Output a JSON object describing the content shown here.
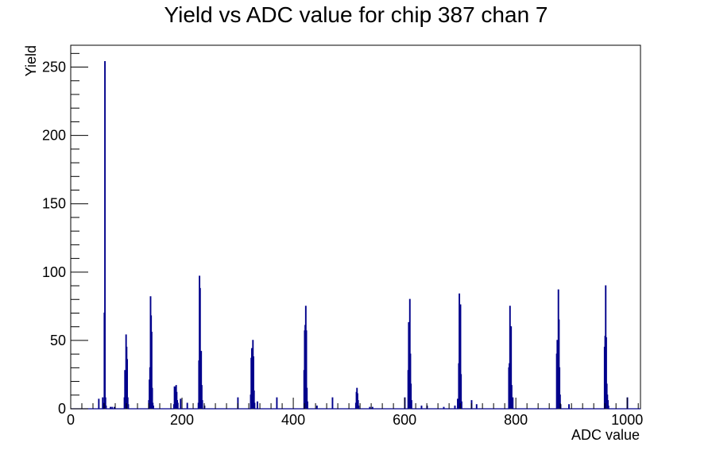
{
  "chart_data": {
    "type": "histogram",
    "title": "Yield vs ADC value for chip 387 chan 7",
    "xlabel": "ADC value",
    "ylabel": "Yield",
    "xlim": [
      0,
      1024
    ],
    "ylim": [
      0,
      266
    ],
    "x_ticks": [
      0,
      200,
      400,
      600,
      800,
      1000
    ],
    "y_ticks": [
      0,
      50,
      100,
      150,
      200,
      250
    ],
    "line_color": "#00008b",
    "legend": "none",
    "grid": false,
    "bin_width": 1,
    "bins": [
      [
        50,
        7
      ],
      [
        57,
        8
      ],
      [
        59,
        4
      ],
      [
        60,
        70
      ],
      [
        61,
        254
      ],
      [
        62,
        8
      ],
      [
        63,
        2
      ],
      [
        71,
        1
      ],
      [
        74,
        1
      ],
      [
        78,
        1
      ],
      [
        96,
        8
      ],
      [
        97,
        28
      ],
      [
        98,
        27
      ],
      [
        99,
        54
      ],
      [
        100,
        45
      ],
      [
        101,
        36
      ],
      [
        102,
        8
      ],
      [
        103,
        3
      ],
      [
        140,
        6
      ],
      [
        141,
        21
      ],
      [
        142,
        30
      ],
      [
        143,
        82
      ],
      [
        144,
        68
      ],
      [
        145,
        56
      ],
      [
        146,
        15
      ],
      [
        147,
        4
      ],
      [
        148,
        2
      ],
      [
        185,
        3
      ],
      [
        186,
        16
      ],
      [
        187,
        16
      ],
      [
        188,
        13
      ],
      [
        189,
        17
      ],
      [
        190,
        12
      ],
      [
        191,
        6
      ],
      [
        192,
        4
      ],
      [
        197,
        7
      ],
      [
        209,
        4
      ],
      [
        229,
        4
      ],
      [
        230,
        35
      ],
      [
        231,
        97
      ],
      [
        232,
        88
      ],
      [
        233,
        22
      ],
      [
        234,
        42
      ],
      [
        235,
        17
      ],
      [
        236,
        6
      ],
      [
        240,
        2
      ],
      [
        300,
        8
      ],
      [
        323,
        10
      ],
      [
        324,
        37
      ],
      [
        325,
        44
      ],
      [
        326,
        43
      ],
      [
        327,
        50
      ],
      [
        328,
        38
      ],
      [
        329,
        13
      ],
      [
        330,
        4
      ],
      [
        335,
        5
      ],
      [
        370,
        8
      ],
      [
        419,
        28
      ],
      [
        420,
        57
      ],
      [
        421,
        61
      ],
      [
        422,
        75
      ],
      [
        423,
        57
      ],
      [
        424,
        15
      ],
      [
        425,
        5
      ],
      [
        442,
        2
      ],
      [
        470,
        8
      ],
      [
        512,
        4
      ],
      [
        513,
        12
      ],
      [
        514,
        15
      ],
      [
        515,
        11
      ],
      [
        516,
        6
      ],
      [
        517,
        2
      ],
      [
        537,
        1
      ],
      [
        542,
        1
      ],
      [
        600,
        8
      ],
      [
        606,
        28
      ],
      [
        607,
        63
      ],
      [
        608,
        62
      ],
      [
        609,
        80
      ],
      [
        610,
        40
      ],
      [
        611,
        18
      ],
      [
        612,
        6
      ],
      [
        630,
        2
      ],
      [
        640,
        2
      ],
      [
        670,
        1
      ],
      [
        690,
        2
      ],
      [
        695,
        7
      ],
      [
        697,
        33
      ],
      [
        698,
        84
      ],
      [
        699,
        32
      ],
      [
        700,
        76
      ],
      [
        701,
        25
      ],
      [
        702,
        5
      ],
      [
        720,
        6
      ],
      [
        729,
        3
      ],
      [
        787,
        30
      ],
      [
        788,
        33
      ],
      [
        789,
        75
      ],
      [
        790,
        59
      ],
      [
        791,
        60
      ],
      [
        792,
        17
      ],
      [
        793,
        4
      ],
      [
        794,
        8
      ],
      [
        873,
        40
      ],
      [
        874,
        50
      ],
      [
        875,
        47
      ],
      [
        876,
        87
      ],
      [
        877,
        65
      ],
      [
        878,
        30
      ],
      [
        879,
        10
      ],
      [
        880,
        3
      ],
      [
        895,
        3
      ],
      [
        959,
        45
      ],
      [
        960,
        53
      ],
      [
        961,
        90
      ],
      [
        962,
        52
      ],
      [
        963,
        18
      ],
      [
        964,
        10
      ],
      [
        965,
        6
      ],
      [
        966,
        2
      ],
      [
        1000,
        8
      ]
    ]
  }
}
